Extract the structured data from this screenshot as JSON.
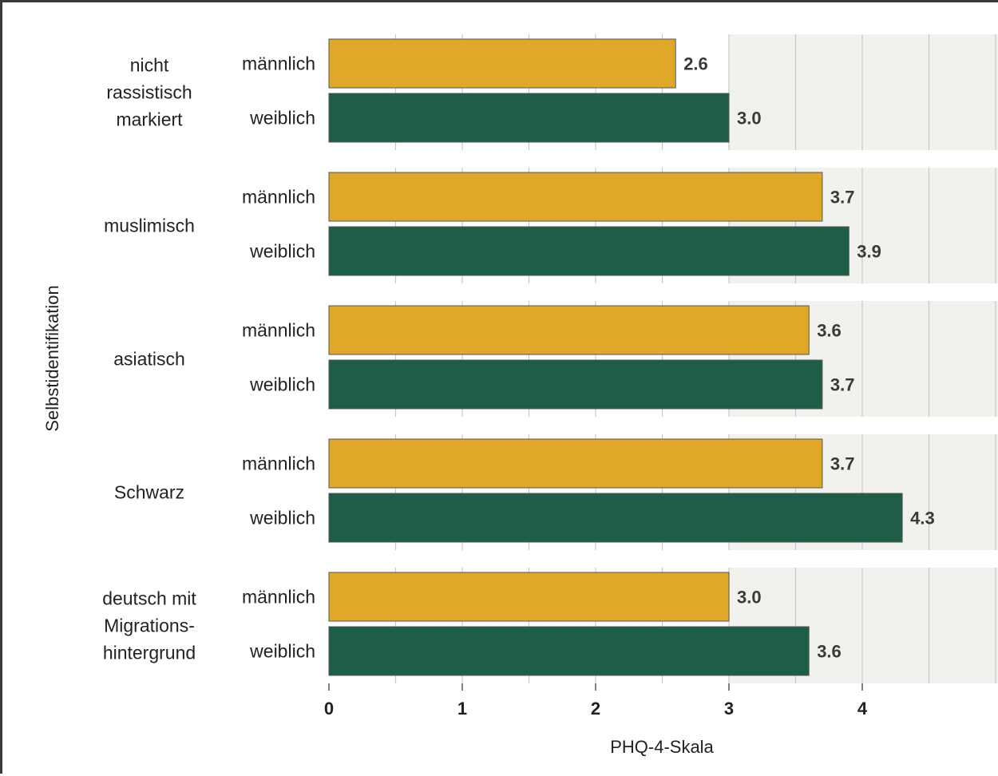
{
  "chart_data": {
    "type": "bar",
    "orientation": "horizontal",
    "ylabel": "Selbstidentifikation",
    "xlabel": "PHQ-4-Skala",
    "xlim": [
      0,
      5
    ],
    "xticks": [
      "0",
      "1",
      "2",
      "3",
      "4"
    ],
    "grid": true,
    "groups": [
      {
        "label": "nicht\nrassistisch\nmarkiert",
        "bars": [
          {
            "gender": "männlich",
            "value": 2.6,
            "value_label": "2.6"
          },
          {
            "gender": "weiblich",
            "value": 3.0,
            "value_label": "3.0"
          }
        ]
      },
      {
        "label": "muslimisch",
        "bars": [
          {
            "gender": "männlich",
            "value": 3.7,
            "value_label": "3.7"
          },
          {
            "gender": "weiblich",
            "value": 3.9,
            "value_label": "3.9"
          }
        ]
      },
      {
        "label": "asiatisch",
        "bars": [
          {
            "gender": "männlich",
            "value": 3.6,
            "value_label": "3.6"
          },
          {
            "gender": "weiblich",
            "value": 3.7,
            "value_label": "3.7"
          }
        ]
      },
      {
        "label": "Schwarz",
        "bars": [
          {
            "gender": "männlich",
            "value": 3.7,
            "value_label": "3.7"
          },
          {
            "gender": "weiblich",
            "value": 4.3,
            "value_label": "4.3"
          }
        ]
      },
      {
        "label": "deutsch mit\nMigrations-\nhintergrund",
        "bars": [
          {
            "gender": "männlich",
            "value": 3.0,
            "value_label": "3.0"
          },
          {
            "gender": "weiblich",
            "value": 3.6,
            "value_label": "3.6"
          }
        ]
      }
    ],
    "colors": {
      "männlich": "#e0a829",
      "weiblich": "#1e5e48",
      "band": "#f1f2ee",
      "grid": "#c8c8c8",
      "tick": "#555555"
    }
  }
}
